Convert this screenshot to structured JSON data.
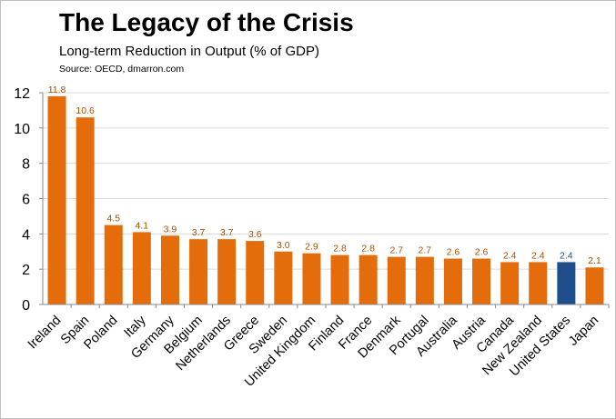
{
  "header": {
    "title": "The Legacy of the Crisis",
    "subtitle": "Long-term Reduction in Output (% of GDP)",
    "source": "Source: OECD, dmarron.com"
  },
  "colors": {
    "default_bar": "#e46c0a",
    "highlight_bar": "#1f4e8c",
    "default_label": "#a65000",
    "highlight_label": "#1f4e8c",
    "grid": "#d9d9d9",
    "axis": "#888888"
  },
  "chart_data": {
    "type": "bar",
    "title": "The Legacy of the Crisis",
    "subtitle": "Long-term Reduction in Output (% of GDP)",
    "xlabel": "",
    "ylabel": "",
    "ylim": [
      0,
      12
    ],
    "yticks": [
      0,
      2,
      4,
      6,
      8,
      10,
      12
    ],
    "grid": true,
    "legend": "none",
    "categories": [
      "Ireland",
      "Spain",
      "Poland",
      "Italy",
      "Germany",
      "Belgium",
      "Netherlands",
      "Greece",
      "Sweden",
      "United Kingdom",
      "Finland",
      "France",
      "Denmark",
      "Portugal",
      "Australia",
      "Austria",
      "Canada",
      "New Zealand",
      "United States",
      "Japan"
    ],
    "values": [
      11.8,
      10.6,
      4.5,
      4.1,
      3.9,
      3.7,
      3.7,
      3.6,
      3.0,
      2.9,
      2.8,
      2.8,
      2.7,
      2.7,
      2.6,
      2.6,
      2.4,
      2.4,
      2.4,
      2.1
    ],
    "data_labels": [
      "11.8",
      "10.6",
      "4.5",
      "4.1",
      "3.9",
      "3.7",
      "3.7",
      "3.6",
      "3.0",
      "2.9",
      "2.8",
      "2.8",
      "2.7",
      "2.7",
      "2.6",
      "2.6",
      "2.4",
      "2.4",
      "2.4",
      "2.1"
    ],
    "highlight": [
      "United States"
    ]
  }
}
